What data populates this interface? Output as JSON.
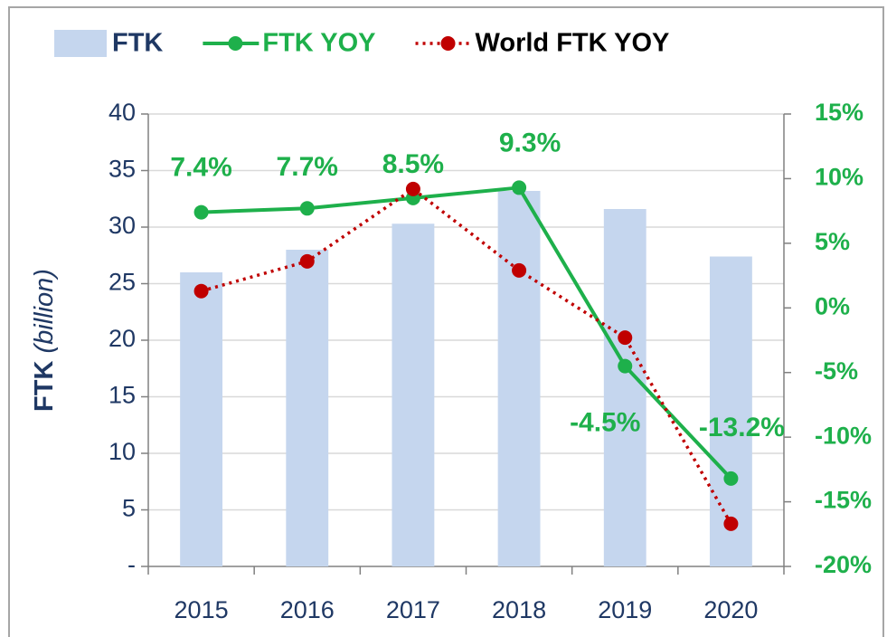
{
  "chart_data": {
    "type": "bar_line",
    "categories": [
      "2015",
      "2016",
      "2017",
      "2018",
      "2019",
      "2020"
    ],
    "y_label": {
      "main": "FTK",
      "unit": "(billion)"
    },
    "ylim": [
      0,
      40
    ],
    "yticks": [
      {
        "value": 0,
        "label": "-"
      },
      5,
      10,
      15,
      20,
      25,
      30,
      35,
      40
    ],
    "y2lim": [
      -20,
      15
    ],
    "y2ticks": [
      {
        "value": -20,
        "label": "-20%"
      },
      {
        "value": -15,
        "label": "-15%"
      },
      {
        "value": -10,
        "label": "-10%"
      },
      {
        "value": -5,
        "label": "-5%"
      },
      {
        "value": 0,
        "label": "0%"
      },
      {
        "value": 5,
        "label": "5%"
      },
      {
        "value": 10,
        "label": "10%"
      },
      {
        "value": 15,
        "label": "15%"
      }
    ],
    "grid": true,
    "legend": "top",
    "series": [
      {
        "name": "FTK",
        "type": "bar",
        "color": "#c5d6ee",
        "values": [
          26,
          28,
          30.3,
          33.2,
          31.6,
          27.4
        ]
      },
      {
        "name": "FTK YOY",
        "type": "line",
        "axis": "y2",
        "color": "#1eb04b",
        "values": [
          7.4,
          7.7,
          8.5,
          9.3,
          -4.5,
          -13.2
        ],
        "value_labels": [
          "7.4%",
          "7.7%",
          "8.5%",
          "9.3%",
          "-4.5%",
          "-13.2%"
        ]
      },
      {
        "name": "World FTK YOY",
        "type": "line",
        "dotted": true,
        "axis": "y2",
        "color": "#c00000",
        "values": [
          1.3,
          3.6,
          9.2,
          2.9,
          -2.3,
          -16.7
        ]
      }
    ]
  }
}
